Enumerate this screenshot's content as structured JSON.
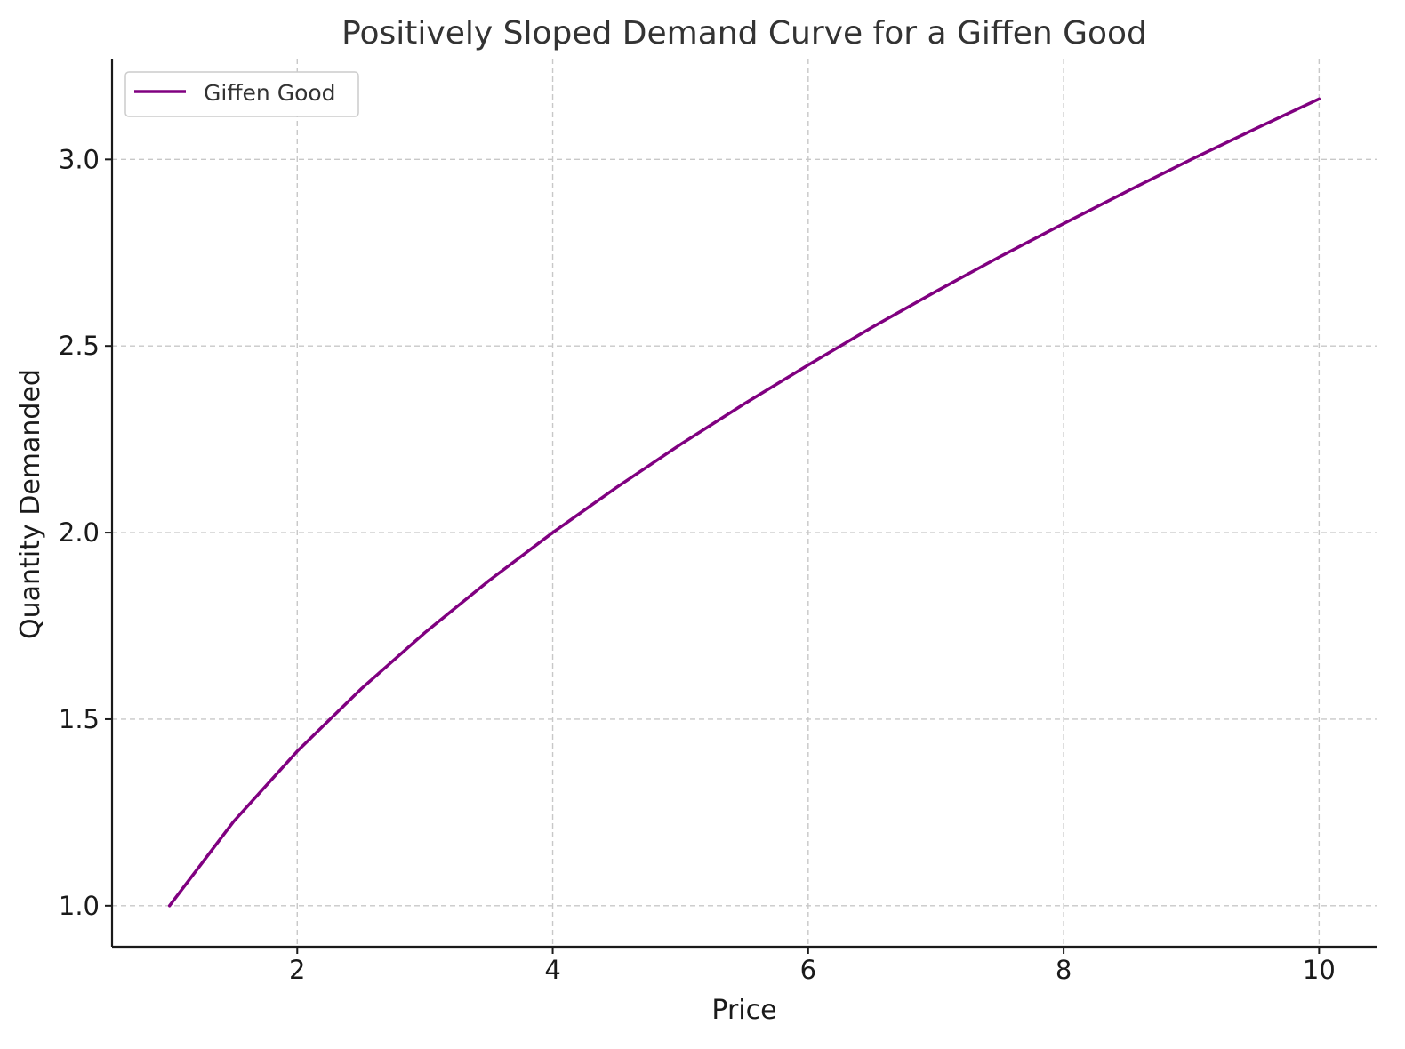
{
  "chart_data": {
    "type": "line",
    "title": "Positively Sloped Demand Curve for a Giffen Good",
    "xlabel": "Price",
    "ylabel": "Quantity Demanded",
    "xlim": [
      0.55,
      10.45
    ],
    "ylim": [
      0.89,
      3.27
    ],
    "xticks": [
      2,
      4,
      6,
      8,
      10
    ],
    "xtick_labels": [
      "2",
      "4",
      "6",
      "8",
      "10"
    ],
    "yticks": [
      1.0,
      1.5,
      2.0,
      2.5,
      3.0
    ],
    "ytick_labels": [
      "1.0",
      "1.5",
      "2.0",
      "2.5",
      "3.0"
    ],
    "grid": true,
    "legend_position": "upper-left",
    "series": [
      {
        "name": "Giffen Good",
        "color": "#800080",
        "x": [
          1.0,
          1.5,
          2.0,
          2.5,
          3.0,
          3.5,
          4.0,
          4.5,
          5.0,
          5.5,
          6.0,
          6.5,
          7.0,
          7.5,
          8.0,
          8.5,
          9.0,
          9.5,
          10.0
        ],
        "y": [
          1.0,
          1.225,
          1.414,
          1.581,
          1.732,
          1.871,
          2.0,
          2.121,
          2.236,
          2.345,
          2.449,
          2.55,
          2.646,
          2.739,
          2.828,
          2.915,
          3.0,
          3.082,
          3.162
        ]
      }
    ]
  }
}
